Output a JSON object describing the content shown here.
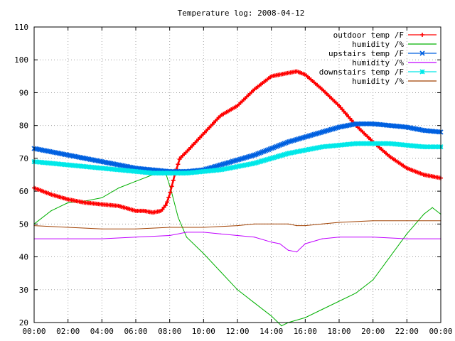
{
  "chart_data": {
    "type": "line",
    "title": "Temperature log: 2008-04-12",
    "xlabel": "",
    "ylabel": "",
    "xlim": [
      0,
      24
    ],
    "ylim": [
      20,
      110
    ],
    "grid": true,
    "legend_position": "top-right",
    "x_tick_labels": [
      "00:00",
      "02:00",
      "04:00",
      "06:00",
      "08:00",
      "10:00",
      "12:00",
      "14:00",
      "16:00",
      "18:00",
      "20:00",
      "22:00",
      "00:00"
    ],
    "y_tick_labels": [
      "20",
      "30",
      "40",
      "50",
      "60",
      "70",
      "80",
      "90",
      "100",
      "110"
    ],
    "series": [
      {
        "name": "outdoor temp /F",
        "color": "#ff0000",
        "marker": "plus",
        "x": [
          0,
          1,
          2,
          3,
          4,
          5,
          6,
          6.5,
          7,
          7.5,
          7.8,
          8,
          8.3,
          8.6,
          9,
          10,
          11,
          12,
          13,
          14,
          15,
          15.5,
          16,
          17,
          18,
          19,
          20,
          21,
          22,
          23,
          24
        ],
        "y": [
          61,
          59,
          57.5,
          56.5,
          56,
          55.5,
          54,
          54,
          53.5,
          54,
          56,
          59,
          65,
          70,
          72,
          77.5,
          83,
          86,
          91,
          95,
          96,
          96.5,
          95.5,
          91,
          86,
          80,
          75,
          70.5,
          67,
          65,
          64
        ]
      },
      {
        "name": "humidity /%",
        "color": "#00b000",
        "marker": "none",
        "x": [
          0,
          1,
          2,
          3,
          4,
          5,
          6,
          7,
          7.8,
          8.1,
          8.5,
          9,
          10,
          11,
          12,
          13,
          14,
          14.6,
          15,
          16,
          17,
          18,
          19,
          20,
          21,
          22,
          23,
          23.5,
          24
        ],
        "y": [
          50,
          54,
          56.5,
          57,
          58,
          61,
          63,
          65,
          65,
          60,
          52,
          46,
          41,
          35.5,
          30,
          26,
          22,
          19,
          20,
          21.5,
          24,
          26.5,
          29,
          33,
          40,
          47,
          53,
          55,
          53
        ]
      },
      {
        "name": "upstairs temp /F",
        "color": "#0060e0",
        "marker": "x",
        "x": [
          0,
          1,
          2,
          3,
          4,
          5,
          6,
          7,
          8,
          9,
          10,
          11,
          12,
          13,
          14,
          15,
          16,
          17,
          18,
          19,
          20,
          21,
          22,
          23,
          24
        ],
        "y": [
          73,
          72,
          71,
          70,
          69,
          68,
          67,
          66.5,
          66,
          66,
          66.5,
          68,
          69.5,
          71,
          73,
          75,
          76.5,
          78,
          79.5,
          80.5,
          80.5,
          80,
          79.5,
          78.5,
          78
        ]
      },
      {
        "name": "humidity /%",
        "color": "#c000ff",
        "marker": "none",
        "x": [
          0,
          2,
          4,
          6,
          8,
          9,
          10,
          11,
          12,
          13,
          14,
          14.5,
          15,
          15.5,
          16,
          17,
          18,
          20,
          22,
          24
        ],
        "y": [
          45.5,
          45.5,
          45.5,
          46,
          46.5,
          47.5,
          47.5,
          47,
          46.5,
          46,
          44.5,
          44,
          42,
          41.5,
          44,
          45.5,
          46,
          46,
          45.5,
          45.5
        ]
      },
      {
        "name": "downstairs temp /F",
        "color": "#00e8e8",
        "marker": "star",
        "x": [
          0,
          1,
          2,
          3,
          4,
          5,
          6,
          7,
          8,
          9,
          10,
          11,
          12,
          13,
          14,
          15,
          16,
          17,
          18,
          19,
          20,
          21,
          22,
          23,
          24
        ],
        "y": [
          69,
          68.5,
          68,
          67.5,
          67,
          66.5,
          66,
          65.5,
          65.5,
          65.5,
          66,
          66.5,
          67.5,
          68.5,
          70,
          71.5,
          72.5,
          73.5,
          74,
          74.5,
          74.5,
          74.5,
          74,
          73.5,
          73.5
        ]
      },
      {
        "name": "humidity /%",
        "color": "#a04000",
        "marker": "none",
        "x": [
          0,
          2,
          4,
          6,
          8,
          10,
          12,
          13,
          14,
          15,
          15.5,
          16,
          17,
          18,
          20,
          22,
          24
        ],
        "y": [
          49.5,
          49,
          48.5,
          48.5,
          49,
          49,
          49.5,
          50,
          50,
          50,
          49.5,
          49.5,
          50,
          50.5,
          51,
          51,
          51
        ]
      }
    ]
  }
}
